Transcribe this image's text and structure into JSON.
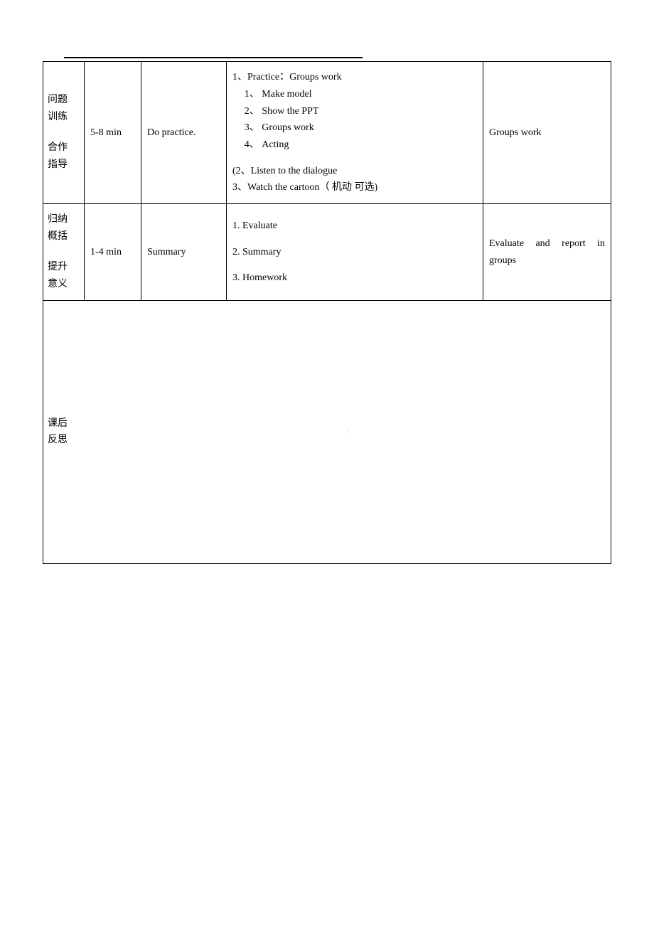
{
  "table": {
    "border_color": "#000000",
    "background": "#ffffff",
    "font_size_pt": 10.5,
    "rows": [
      {
        "label_line1": "问题",
        "label_line2": "训练",
        "label_line3": "合作",
        "label_line4": "指导",
        "time": "5-8 min",
        "activity": "Do practice.",
        "content_lines": [
          "1、Practice：Groups work",
          "1、 Make model",
          "2、 Show the PPT",
          "3、 Groups work",
          "4、 Acting",
          "",
          "(2、Listen to the dialogue",
          "3、Watch the cartoon（ 机动 可选)"
        ],
        "notes": "Groups work"
      },
      {
        "label_line1": "归纳",
        "label_line2": "概括",
        "label_line3": "提升",
        "label_line4": "意义",
        "time": "1-4 min",
        "activity": "Summary",
        "content_lines": [
          "1.   Evaluate",
          "",
          "2.   Summary",
          "",
          "3.   Homework"
        ],
        "notes": "Evaluate and report in groups"
      },
      {
        "label_line1": "课后",
        "label_line2": "反思",
        "placeholder": "·"
      }
    ]
  }
}
